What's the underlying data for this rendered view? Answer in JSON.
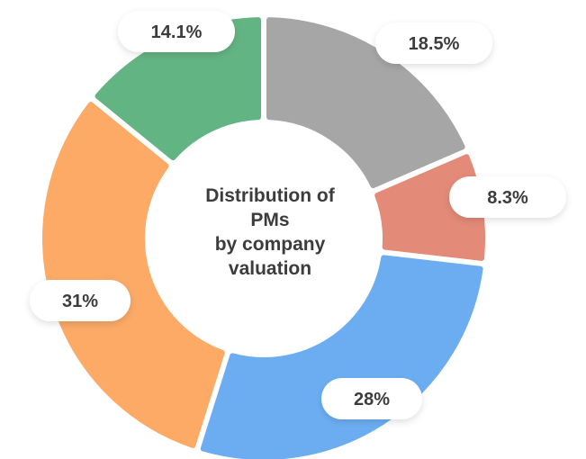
{
  "chart_data": {
    "type": "pie",
    "title_lines": [
      "Distribution of",
      "PMs",
      "by company",
      "valuation"
    ],
    "slices": [
      {
        "value": 18.5,
        "label": "18.5%",
        "color": "#a6a6a6"
      },
      {
        "value": 8.3,
        "label": "8.3%",
        "color": "#e38a78"
      },
      {
        "value": 28,
        "label": "28%",
        "color": "#6cadf2"
      },
      {
        "value": 31,
        "label": "31%",
        "color": "#fcaa66"
      },
      {
        "value": 14.1,
        "label": "14.1%",
        "color": "#63b483"
      }
    ]
  }
}
